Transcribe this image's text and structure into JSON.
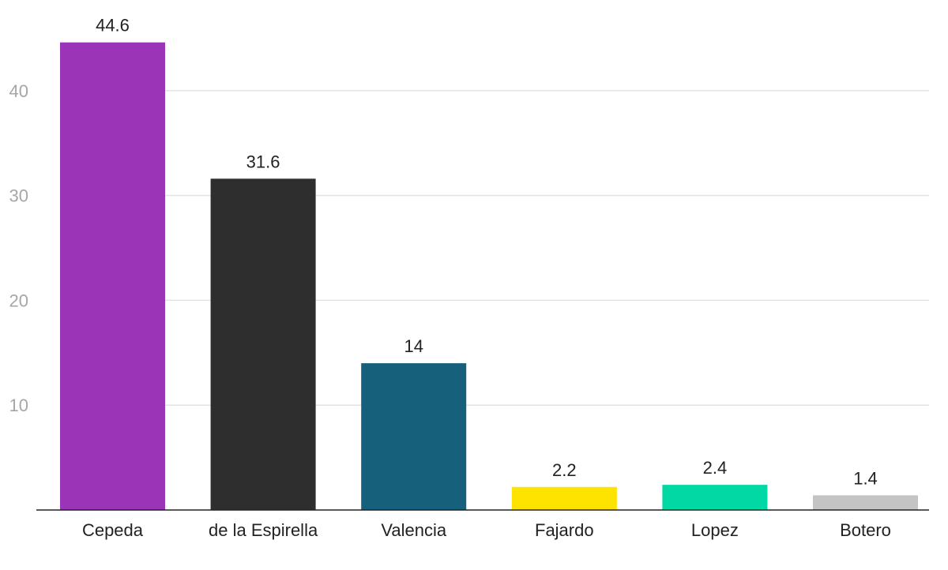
{
  "chart_data": {
    "type": "bar",
    "title": "",
    "xlabel": "",
    "ylabel": "",
    "categories": [
      "Cepeda",
      "de la Espirella",
      "Valencia",
      "Fajardo",
      "Lopez",
      "Botero"
    ],
    "values": [
      44.6,
      31.6,
      14,
      2.2,
      2.4,
      1.4
    ],
    "value_labels": [
      "44.6",
      "31.6",
      "14",
      "2.2",
      "2.4",
      "1.4"
    ],
    "colors": [
      "#9b35b8",
      "#2e2e2e",
      "#17607c",
      "#ffe300",
      "#00d9a3",
      "#c4c4c4"
    ],
    "ylim": [
      0,
      48
    ],
    "yticks": [
      10,
      20,
      30,
      40
    ],
    "ytick_labels": [
      "10",
      "20",
      "30",
      "40"
    ],
    "grid": true
  }
}
